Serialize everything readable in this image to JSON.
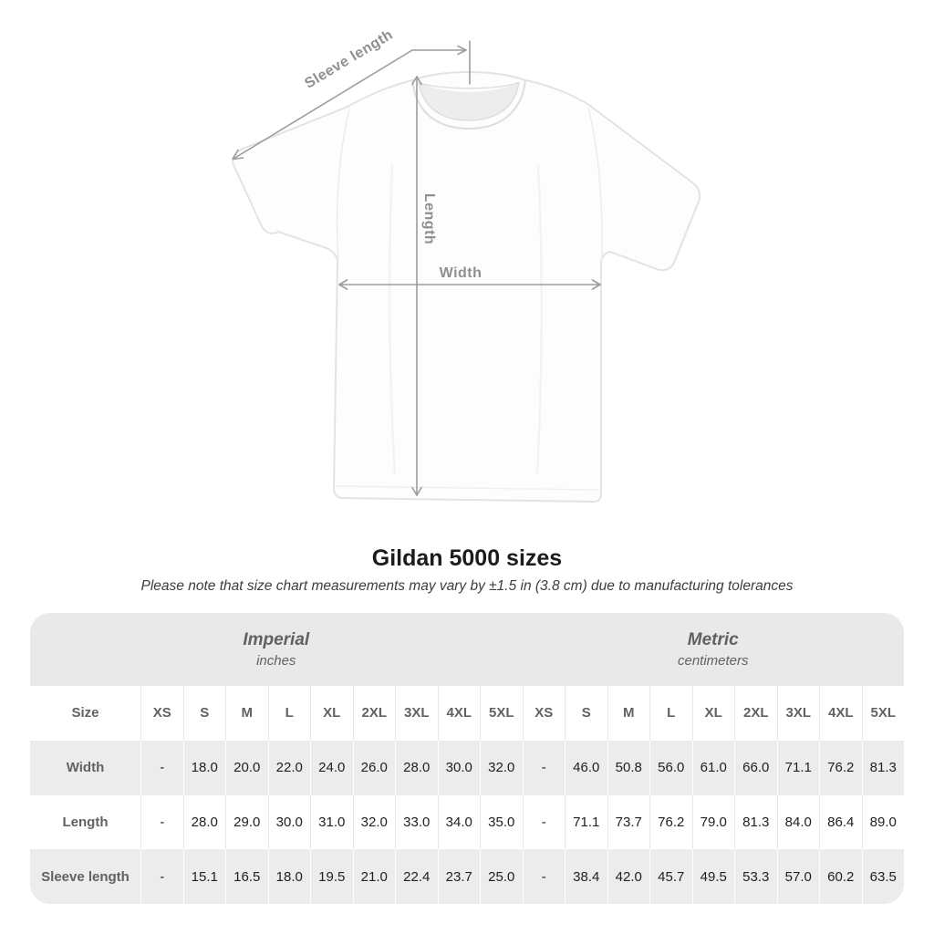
{
  "title": "Gildan 5000 sizes",
  "subtitle": "Please note that size chart measurements may vary by ±1.5 in (3.8 cm) due to manufacturing tolerances",
  "diagram": {
    "sleeve_label": "Sleeve length",
    "length_label": "Length",
    "width_label": "Width"
  },
  "colors": {
    "measure_line": "#9c9c9c",
    "measure_label": "#8f8f8f",
    "band_bg": "#e9e9e9",
    "row_alt_bg": "#ececec",
    "header_text": "#5f6265",
    "value_text": "#212121",
    "title_text": "#1b1b1b",
    "subtitle_text": "#3d3d3d"
  },
  "table": {
    "size_label": "Size",
    "unit_groups": [
      {
        "label": "Imperial",
        "sublabel": "inches"
      },
      {
        "label": "Metric",
        "sublabel": "centimeters"
      }
    ],
    "sizes": [
      "XS",
      "S",
      "M",
      "L",
      "XL",
      "2XL",
      "3XL",
      "4XL",
      "5XL"
    ],
    "rows": [
      {
        "label": "Width",
        "imperial": [
          "-",
          "18.0",
          "20.0",
          "22.0",
          "24.0",
          "26.0",
          "28.0",
          "30.0",
          "32.0"
        ],
        "metric": [
          "-",
          "46.0",
          "50.8",
          "56.0",
          "61.0",
          "66.0",
          "71.1",
          "76.2",
          "81.3"
        ]
      },
      {
        "label": "Length",
        "imperial": [
          "-",
          "28.0",
          "29.0",
          "30.0",
          "31.0",
          "32.0",
          "33.0",
          "34.0",
          "35.0"
        ],
        "metric": [
          "-",
          "71.1",
          "73.7",
          "76.2",
          "79.0",
          "81.3",
          "84.0",
          "86.4",
          "89.0"
        ]
      },
      {
        "label": "Sleeve length",
        "imperial": [
          "-",
          "15.1",
          "16.5",
          "18.0",
          "19.5",
          "21.0",
          "22.4",
          "23.7",
          "25.0"
        ],
        "metric": [
          "-",
          "38.4",
          "42.0",
          "45.7",
          "49.5",
          "53.3",
          "57.0",
          "60.2",
          "63.5"
        ]
      }
    ]
  },
  "chart_data": {
    "type": "table",
    "title": "Gildan 5000 sizes",
    "note": "Please note that size chart measurements may vary by ±1.5 in (3.8 cm) due to manufacturing tolerances",
    "column_groups": [
      {
        "label": "Imperial",
        "unit": "inches",
        "span": 9
      },
      {
        "label": "Metric",
        "unit": "centimeters",
        "span": 9
      }
    ],
    "columns": [
      "Size",
      "XS",
      "S",
      "M",
      "L",
      "XL",
      "2XL",
      "3XL",
      "4XL",
      "5XL",
      "XS",
      "S",
      "M",
      "L",
      "XL",
      "2XL",
      "3XL",
      "4XL",
      "5XL"
    ],
    "rows": [
      [
        "Width",
        "-",
        "18.0",
        "20.0",
        "22.0",
        "24.0",
        "26.0",
        "28.0",
        "30.0",
        "32.0",
        "-",
        "46.0",
        "50.8",
        "56.0",
        "61.0",
        "66.0",
        "71.1",
        "76.2",
        "81.3"
      ],
      [
        "Length",
        "-",
        "28.0",
        "29.0",
        "30.0",
        "31.0",
        "32.0",
        "33.0",
        "34.0",
        "35.0",
        "-",
        "71.1",
        "73.7",
        "76.2",
        "79.0",
        "81.3",
        "84.0",
        "86.4",
        "89.0"
      ],
      [
        "Sleeve length",
        "-",
        "15.1",
        "16.5",
        "18.0",
        "19.5",
        "21.0",
        "22.4",
        "23.7",
        "25.0",
        "-",
        "38.4",
        "42.0",
        "45.7",
        "49.5",
        "53.3",
        "57.0",
        "60.2",
        "63.5"
      ]
    ]
  }
}
